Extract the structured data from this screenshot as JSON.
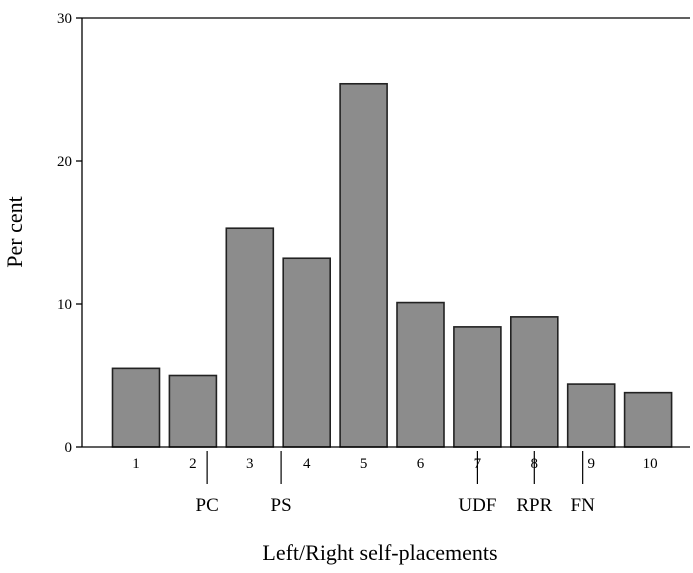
{
  "chart_data": {
    "type": "bar",
    "categories": [
      "1",
      "2",
      "3",
      "4",
      "5",
      "6",
      "7",
      "8",
      "9",
      "10"
    ],
    "values": [
      5.5,
      5.0,
      15.3,
      13.2,
      25.4,
      10.1,
      8.4,
      9.1,
      4.4,
      3.8
    ],
    "xlabel": "Left/Right self-placements",
    "ylabel": "Per cent",
    "ylim": [
      0,
      30
    ],
    "yticks": [
      0,
      10,
      20,
      30
    ],
    "grid": false,
    "bar_color": "#8c8c8c",
    "annotations": [
      {
        "label": "PC",
        "x": 2.25
      },
      {
        "label": "PS",
        "x": 3.55
      },
      {
        "label": "UDF",
        "x": 7.0
      },
      {
        "label": "RPR",
        "x": 8.0
      },
      {
        "label": "FN",
        "x": 8.85
      }
    ]
  }
}
